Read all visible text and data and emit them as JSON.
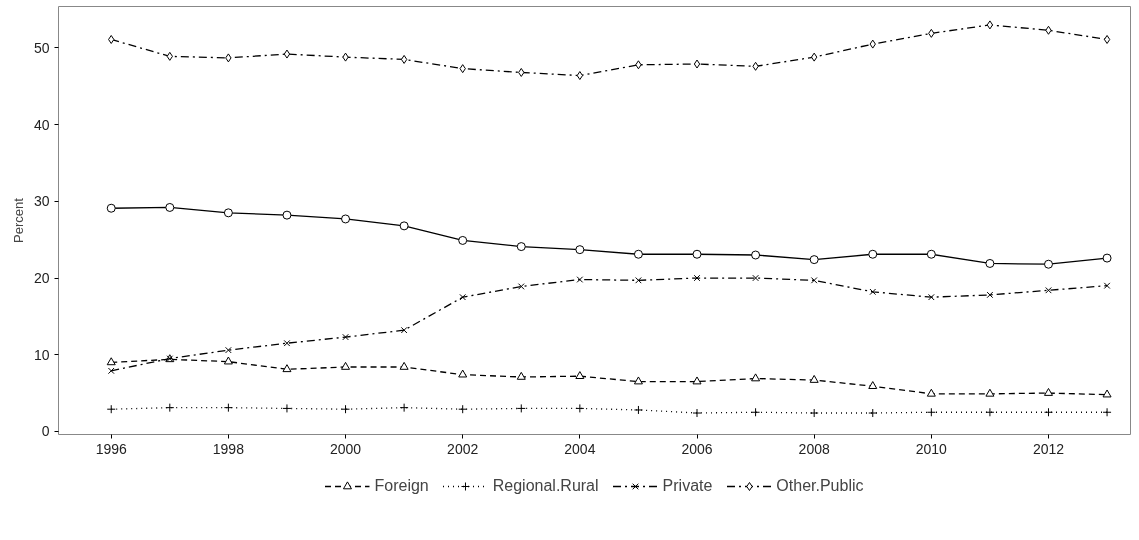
{
  "chart_data": {
    "type": "line",
    "ylabel": "Percent",
    "x": [
      1996,
      1997,
      1998,
      1999,
      2000,
      2001,
      2002,
      2003,
      2004,
      2005,
      2006,
      2007,
      2008,
      2009,
      2010,
      2011,
      2012,
      2013
    ],
    "xlim": [
      1995.1,
      2013.4
    ],
    "xticks": [
      1996,
      1998,
      2000,
      2002,
      2004,
      2006,
      2008,
      2010,
      2012
    ],
    "ylim": [
      -0.4,
      55.4
    ],
    "yticks": [
      0,
      10,
      20,
      30,
      40,
      50
    ],
    "grid": false,
    "legend": "bottom",
    "series": [
      {
        "color": "#000000",
        "line_style": "solid",
        "marker": "circle",
        "values": [
          29.1,
          29.2,
          28.5,
          28.2,
          27.7,
          26.8,
          24.9,
          24.1,
          23.7,
          23.1,
          23.1,
          23.0,
          22.4,
          23.1,
          23.1,
          21.9,
          21.8,
          22.6
        ]
      },
      {
        "name": "Foreign",
        "color": "#000000",
        "line_style": "dashed",
        "marker": "triangle",
        "values": [
          9.0,
          9.4,
          9.1,
          8.1,
          8.4,
          8.4,
          7.4,
          7.1,
          7.2,
          6.5,
          6.5,
          6.9,
          6.7,
          5.9,
          4.9,
          4.9,
          5.0,
          4.8
        ]
      },
      {
        "name": "Regional.Rural",
        "color": "#000000",
        "line_style": "dotted",
        "marker": "cross",
        "values": [
          2.9,
          3.1,
          3.1,
          3.0,
          2.9,
          3.1,
          2.9,
          3.0,
          3.0,
          2.8,
          2.4,
          2.5,
          2.4,
          2.4,
          2.5,
          2.5,
          2.5,
          2.5
        ]
      },
      {
        "name": "Private",
        "color": "#000000",
        "line_style": "dashdot",
        "marker": "x",
        "values": [
          7.9,
          9.5,
          10.6,
          11.5,
          12.3,
          13.2,
          17.5,
          18.9,
          19.8,
          19.7,
          20.0,
          20.0,
          19.7,
          18.2,
          17.5,
          17.8,
          18.4,
          19.0
        ]
      },
      {
        "name": "Other.Public",
        "color": "#000000",
        "line_style": "dashdot",
        "marker": "diamond",
        "values": [
          51.1,
          48.9,
          48.7,
          49.2,
          48.8,
          48.5,
          47.3,
          46.8,
          46.4,
          47.8,
          47.9,
          47.6,
          48.8,
          50.5,
          51.9,
          53.0,
          52.3,
          51.1
        ]
      }
    ]
  }
}
